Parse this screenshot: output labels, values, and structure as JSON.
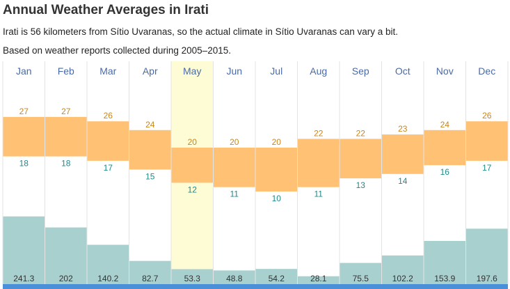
{
  "title": "Annual Weather Averages in Irati",
  "subtitle_distance": "Irati is 56 kilometers from Sítio Uvaranas, so the actual climate in Sítio Uvaranas can vary a bit.",
  "subtitle_source": "Based on weather reports collected during 2005–2015.",
  "colors": {
    "temp_band": "#ffc174",
    "rain_bar": "#a8d0cf",
    "highlight": "#fefcd4",
    "month_label": "#4a6aa5",
    "high_label": "#c8861d",
    "low_label": "#1f8a8a",
    "bottom_bar": "#4a90d9"
  },
  "chart_data": {
    "type": "bar",
    "categories": [
      "Jan",
      "Feb",
      "Mar",
      "Apr",
      "May",
      "Jun",
      "Jul",
      "Aug",
      "Sep",
      "Oct",
      "Nov",
      "Dec"
    ],
    "highlighted": "May",
    "series": [
      {
        "values": [
          27,
          27,
          26,
          24,
          20,
          20,
          20,
          22,
          22,
          23,
          24,
          26
        ]
      },
      {
        "values": [
          18,
          18,
          17,
          15,
          12,
          11,
          10,
          11,
          13,
          14,
          16,
          17
        ]
      },
      {
        "values": [
          241.3,
          202,
          140.2,
          82.7,
          53.3,
          48.8,
          54.2,
          28.1,
          75.5,
          102.2,
          153.9,
          197.6
        ]
      }
    ],
    "temp_range": [
      8,
      29
    ],
    "precip_range": [
      0,
      330
    ],
    "grid": true,
    "legend": "none"
  }
}
